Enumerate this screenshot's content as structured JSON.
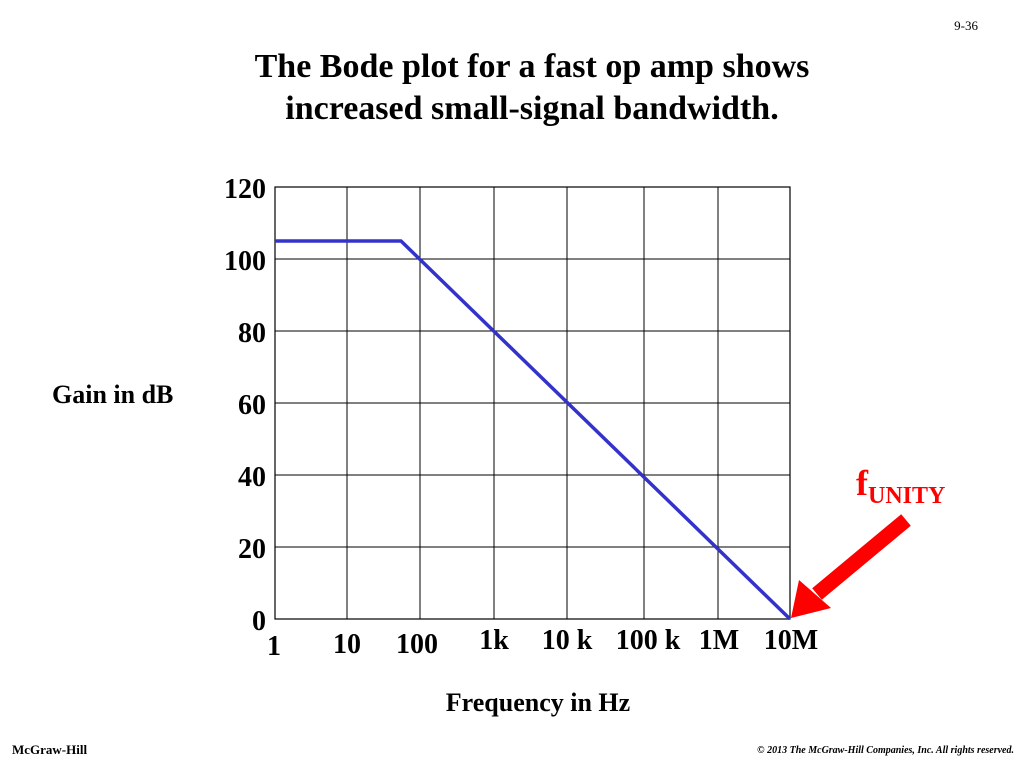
{
  "slide_number": "9-36",
  "title_lines": [
    "The Bode plot for a fast op amp shows",
    "increased small-signal bandwidth."
  ],
  "footer": {
    "left": "McGraw-Hill",
    "right": "© 2013 The McGraw-Hill Companies, Inc. All rights reserved."
  },
  "annotation": {
    "f": "f",
    "sub": "UNITY",
    "color": "#ff0000"
  },
  "chart_data": {
    "type": "line",
    "xlabel": "Frequency in Hz",
    "ylabel": "Gain in dB",
    "x_scale": "log",
    "xlim": [
      1,
      10000000
    ],
    "ylim": [
      0,
      120
    ],
    "grid": true,
    "x_ticks": [
      1,
      10,
      100,
      1000,
      10000,
      100000,
      1000000,
      10000000
    ],
    "x_tick_labels": [
      "1",
      "10",
      "100",
      "1k",
      "10 k",
      "100 k",
      "1M",
      "10M"
    ],
    "y_ticks": [
      0,
      20,
      40,
      60,
      80,
      100,
      120
    ],
    "y_tick_labels": [
      "0",
      "20",
      "40",
      "60",
      "80",
      "100",
      "120"
    ],
    "series": [
      {
        "color": "#3333cc",
        "x": [
          1,
          55,
          10000000
        ],
        "y": [
          105,
          105,
          0
        ]
      }
    ]
  }
}
